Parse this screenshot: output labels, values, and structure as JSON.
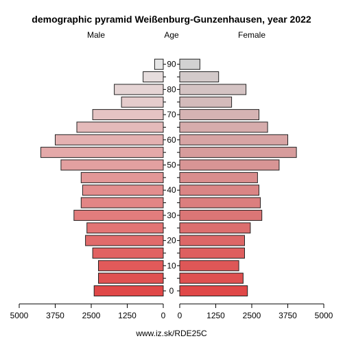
{
  "chart_data": {
    "type": "bar",
    "title": "demographic pyramid Weißenburg-Gunzenhausen, year 2022",
    "left_label": "Male",
    "center_label": "Age",
    "right_label": "Female",
    "footer": "www.iz.sk/RDE25C",
    "age_groups": [
      "0",
      "5",
      "10",
      "15",
      "20",
      "25",
      "30",
      "35",
      "40",
      "45",
      "50",
      "55",
      "60",
      "65",
      "70",
      "75",
      "80",
      "85",
      "90"
    ],
    "age_tick_labels": [
      "0",
      "",
      "10",
      "",
      "20",
      "",
      "30",
      "",
      "40",
      "",
      "50",
      "",
      "60",
      "",
      "70",
      "",
      "80",
      "",
      "90"
    ],
    "series": [
      {
        "name": "Male",
        "values": [
          2400,
          2250,
          2250,
          2450,
          2700,
          2650,
          3100,
          2850,
          2800,
          2850,
          3550,
          4250,
          3750,
          3000,
          2450,
          1450,
          1700,
          700,
          300
        ]
      },
      {
        "name": "Female",
        "values": [
          2350,
          2200,
          2050,
          2250,
          2250,
          2450,
          2850,
          2800,
          2750,
          2700,
          3450,
          4050,
          3750,
          3050,
          2750,
          1800,
          2300,
          1350,
          700
        ]
      }
    ],
    "x_ticks_left": [
      "5000",
      "3750",
      "2500",
      "1250",
      "0"
    ],
    "x_ticks_right": [
      "0",
      "1250",
      "2500",
      "3750",
      "5000"
    ],
    "xlim": [
      0,
      5000
    ],
    "colors": {
      "young": "#e04848",
      "old": "#e6e6e6",
      "female_old": "#d2d2d2",
      "stroke": "#222222"
    }
  }
}
